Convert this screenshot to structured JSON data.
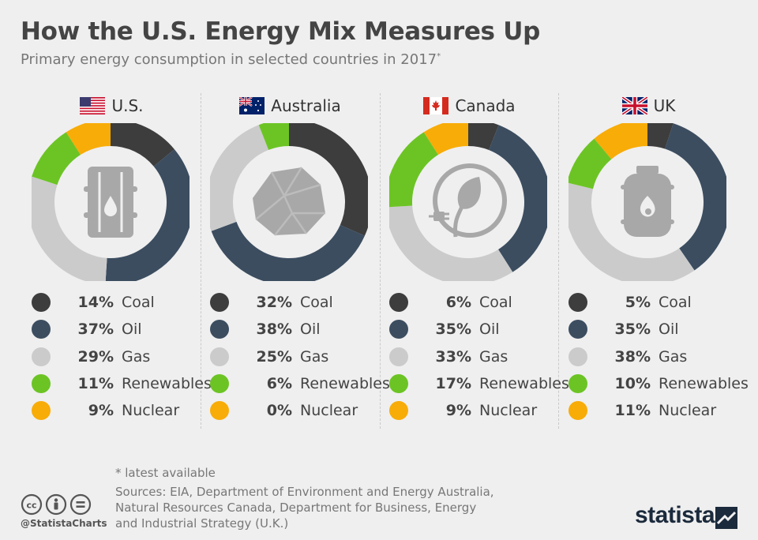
{
  "title": "How the U.S. Energy Mix Measures Up",
  "subtitle": "Primary energy consumption in selected countries in 2017",
  "subtitle_mark": "*",
  "footnote": "* latest available",
  "sources": "Sources: EIA, Department of Environment and Energy Australia, Natural Resources Canada, Department for Business, Energy and Industrial Strategy (U.K.)",
  "handle": "@StatistaCharts",
  "brand": "statista",
  "colors": {
    "Coal": "#3d3d3d",
    "Oil": "#3c4d60",
    "Gas": "#cbcbcb",
    "Renewables": "#6cc424",
    "Nuclear": "#f8ac08"
  },
  "chart_data": [
    {
      "type": "pie",
      "country": "U.S.",
      "flag": "us",
      "icon": "oil-barrel-icon",
      "categories": [
        "Coal",
        "Oil",
        "Gas",
        "Renewables",
        "Nuclear"
      ],
      "values": [
        14,
        37,
        29,
        11,
        9
      ],
      "labels": [
        "14%",
        "37%",
        "29%",
        "11%",
        "9%"
      ]
    },
    {
      "type": "pie",
      "country": "Australia",
      "flag": "au",
      "icon": "coal-rock-icon",
      "categories": [
        "Coal",
        "Oil",
        "Gas",
        "Renewables",
        "Nuclear"
      ],
      "values": [
        32,
        38,
        25,
        6,
        0
      ],
      "labels": [
        "32%",
        "38%",
        "25%",
        "6%",
        "0%"
      ]
    },
    {
      "type": "pie",
      "country": "Canada",
      "flag": "ca",
      "icon": "leaf-plug-icon",
      "categories": [
        "Coal",
        "Oil",
        "Gas",
        "Renewables",
        "Nuclear"
      ],
      "values": [
        6,
        35,
        33,
        17,
        9
      ],
      "labels": [
        "6%",
        "35%",
        "33%",
        "17%",
        "9%"
      ]
    },
    {
      "type": "pie",
      "country": "UK",
      "flag": "uk",
      "icon": "gas-cylinder-icon",
      "categories": [
        "Coal",
        "Oil",
        "Gas",
        "Renewables",
        "Nuclear"
      ],
      "values": [
        5,
        35,
        38,
        10,
        11
      ],
      "labels": [
        "5%",
        "35%",
        "38%",
        "10%",
        "11%"
      ]
    }
  ]
}
